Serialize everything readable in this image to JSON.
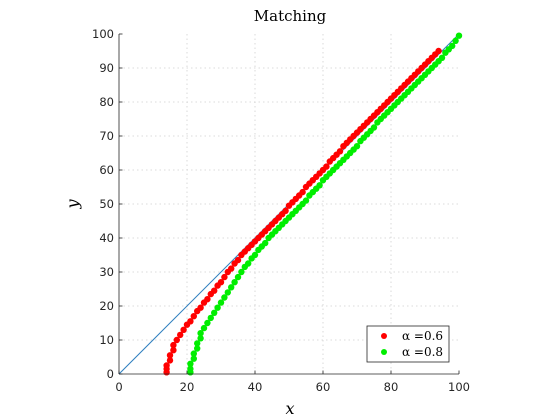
{
  "chart_data": {
    "type": "scatter",
    "title": "Matching",
    "xlabel": "x",
    "ylabel": "y",
    "xlim": [
      0,
      100
    ],
    "ylim": [
      0,
      100
    ],
    "xticks": [
      0,
      20,
      40,
      60,
      80,
      100
    ],
    "yticks": [
      0,
      10,
      20,
      30,
      40,
      50,
      60,
      70,
      80,
      90,
      100
    ],
    "grid": true,
    "legend_position": "bottom-right",
    "reference_line": {
      "x": [
        0,
        100
      ],
      "y": [
        0,
        100
      ],
      "color": "#2f7fbf"
    },
    "series": [
      {
        "name": "α =0.6",
        "color": "#ff0000",
        "x": [
          14,
          14,
          14,
          15,
          15,
          16,
          16,
          17,
          18,
          19,
          20,
          21,
          22,
          23,
          24,
          25,
          26,
          27,
          28,
          29,
          30,
          31,
          32,
          33,
          34,
          35,
          36,
          37,
          38,
          39,
          40,
          41,
          42,
          43,
          44,
          45,
          46,
          47,
          48,
          49,
          50,
          51,
          52,
          53,
          54,
          55,
          56,
          57,
          58,
          59,
          60,
          61,
          62,
          63,
          64,
          65,
          66,
          67,
          68,
          69,
          70,
          71,
          72,
          73,
          74,
          75,
          76,
          77,
          78,
          79,
          80,
          81,
          82,
          83,
          84,
          85,
          86,
          87,
          88,
          89,
          90,
          91,
          92,
          93,
          94
        ],
        "y": [
          0.5,
          1.5,
          2.5,
          4,
          5.5,
          7,
          8.5,
          10,
          11.5,
          13,
          14.5,
          15.5,
          17,
          18.5,
          19.5,
          21,
          22,
          23.5,
          24.5,
          26,
          27,
          28.5,
          30,
          31,
          32.5,
          33.5,
          35,
          36,
          37,
          38,
          39,
          40,
          41,
          42,
          43,
          44,
          45,
          46,
          47,
          48,
          49.5,
          50.5,
          51.5,
          52.5,
          53.5,
          55,
          56,
          57,
          58,
          59,
          60,
          61,
          62.5,
          63.5,
          64.5,
          65.5,
          67,
          68,
          69,
          70,
          71,
          72,
          73,
          74,
          75,
          76,
          77,
          78,
          79,
          80,
          81,
          82,
          83,
          84,
          85,
          86,
          87,
          88,
          89,
          90,
          91,
          92,
          93,
          94,
          95
        ]
      },
      {
        "name": "α =0.8",
        "color": "#00ee00",
        "x": [
          21,
          21,
          21,
          22,
          22,
          23,
          23,
          24,
          24,
          25,
          26,
          27,
          28,
          29,
          30,
          31,
          32,
          33,
          34,
          35,
          36,
          37,
          38,
          39,
          40,
          41,
          42,
          43,
          44,
          45,
          46,
          47,
          48,
          49,
          50,
          51,
          52,
          53,
          54,
          55,
          56,
          57,
          58,
          59,
          60,
          61,
          62,
          63,
          64,
          65,
          66,
          67,
          68,
          69,
          70,
          71,
          72,
          73,
          74,
          75,
          76,
          77,
          78,
          79,
          80,
          81,
          82,
          83,
          84,
          85,
          86,
          87,
          88,
          89,
          90,
          91,
          92,
          93,
          94,
          95,
          96,
          97,
          98,
          99,
          100
        ],
        "y": [
          0.5,
          1.5,
          3,
          4.5,
          6,
          7.5,
          9,
          10.5,
          12,
          13.5,
          15,
          16.5,
          18,
          19.5,
          21,
          22.5,
          24,
          25.5,
          27,
          28.5,
          30,
          31.5,
          32.5,
          34,
          35,
          36.5,
          37.5,
          38.5,
          40,
          41,
          42,
          43,
          44,
          45,
          46,
          47,
          48,
          49,
          50,
          51,
          52.5,
          53.5,
          54.5,
          55.5,
          57,
          58,
          59,
          60,
          61,
          62,
          63,
          64,
          65,
          66,
          67,
          68.5,
          69.5,
          70.5,
          71.5,
          72.5,
          74,
          75,
          76,
          77,
          78,
          79,
          80,
          81,
          82,
          83,
          84,
          85,
          86,
          87,
          88,
          89,
          90,
          91,
          92,
          93,
          94.5,
          95.5,
          96.5,
          98,
          99.5
        ]
      }
    ]
  }
}
